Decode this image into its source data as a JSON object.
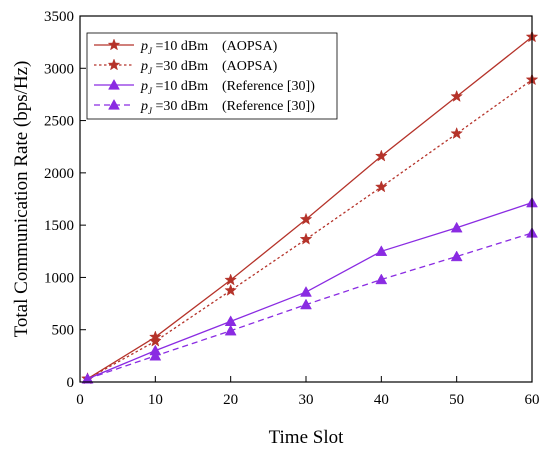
{
  "chart_data": {
    "type": "line",
    "xlabel": "Time Slot",
    "ylabel": "Total Communication Rate (bps/Hz)",
    "xlim": [
      0,
      60
    ],
    "ylim": [
      0,
      3500
    ],
    "xticks": [
      0,
      10,
      20,
      30,
      40,
      50,
      60
    ],
    "yticks": [
      0,
      500,
      1000,
      1500,
      2000,
      2500,
      3000,
      3500
    ],
    "grid": false,
    "legend_position": "top-left",
    "x": [
      1,
      10,
      20,
      30,
      40,
      50,
      60
    ],
    "series": [
      {
        "name": "p_J = 10 dBm (AOPSA)",
        "legend": {
          "var": "p",
          "sub": "J",
          "value": " =10 dBm",
          "method": "(AOPSA)"
        },
        "values": [
          30,
          430,
          975,
          1555,
          2160,
          2730,
          3300
        ],
        "color": "#b5332a",
        "dash": "solid",
        "marker": "star"
      },
      {
        "name": "p_J = 30 dBm (AOPSA)",
        "legend": {
          "var": "p",
          "sub": "J",
          "value": " =30 dBm",
          "method": "(AOPSA)"
        },
        "values": [
          30,
          390,
          875,
          1365,
          1865,
          2375,
          2890
        ],
        "color": "#b5332a",
        "dash": "dotted",
        "marker": "star"
      },
      {
        "name": "p_J = 10 dBm (Reference [30])",
        "legend": {
          "var": "p",
          "sub": "J",
          "value": " =10 dBm",
          "method": "(Reference [30])"
        },
        "values": [
          30,
          300,
          580,
          860,
          1250,
          1475,
          1715
        ],
        "color": "#8a2be2",
        "dash": "solid",
        "marker": "triangle"
      },
      {
        "name": "p_J = 30 dBm (Reference [30])",
        "legend": {
          "var": "p",
          "sub": "J",
          "value": " =30 dBm",
          "method": "(Reference [30])"
        },
        "values": [
          30,
          250,
          490,
          740,
          980,
          1200,
          1425
        ],
        "color": "#8a2be2",
        "dash": "dashed",
        "marker": "triangle"
      }
    ]
  }
}
